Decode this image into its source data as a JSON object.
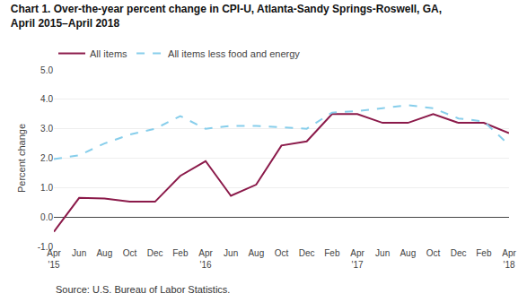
{
  "chart_data": {
    "type": "line",
    "title": "Chart 1. Over-the-year percent change in CPI-U, Atlanta-Sandy Springs-Roswell, GA,\nApril 2015–April 2018",
    "y_label": "Percent change",
    "annotations": [
      "Source: U.S. Bureau of Labor Statistics."
    ],
    "categories": [
      "Apr\n'15",
      "Jun",
      "Aug",
      "Oct",
      "Dec",
      "Feb",
      "Apr\n'16",
      "Jun",
      "Aug",
      "Oct",
      "Dec",
      "Feb",
      "Apr\n'17",
      "Jun",
      "Aug",
      "Oct",
      "Dec",
      "Feb",
      "Apr\n'18"
    ],
    "series": [
      {
        "name": "All items",
        "color": "#8B1A4A",
        "line_style": "solid",
        "values": [
          -0.5,
          0.65,
          0.63,
          0.52,
          0.52,
          1.4,
          1.9,
          0.72,
          1.1,
          2.43,
          2.57,
          3.5,
          3.5,
          3.2,
          3.2,
          3.5,
          3.2,
          3.2,
          2.85
        ]
      },
      {
        "name": "All items less food and energy",
        "color": "#87CEEB",
        "line_style": "dashed",
        "values": [
          1.97,
          2.1,
          2.5,
          2.8,
          3.0,
          3.43,
          3.0,
          3.1,
          3.1,
          3.05,
          3.0,
          3.55,
          3.6,
          3.7,
          3.8,
          3.7,
          3.35,
          3.25,
          2.45
        ]
      }
    ],
    "ylim": [
      -1.0,
      5.0
    ],
    "yticks": [
      {
        "value": -1.0,
        "label": "-1.0"
      },
      {
        "value": 0.0,
        "label": "0.0"
      },
      {
        "value": 1.0,
        "label": "1.0"
      },
      {
        "value": 2.0,
        "label": "2.0"
      },
      {
        "value": 3.0,
        "label": "3.0"
      },
      {
        "value": 4.0,
        "label": "4.0"
      },
      {
        "value": 5.0,
        "label": "5.0"
      }
    ],
    "grid": true,
    "legend": "top"
  }
}
